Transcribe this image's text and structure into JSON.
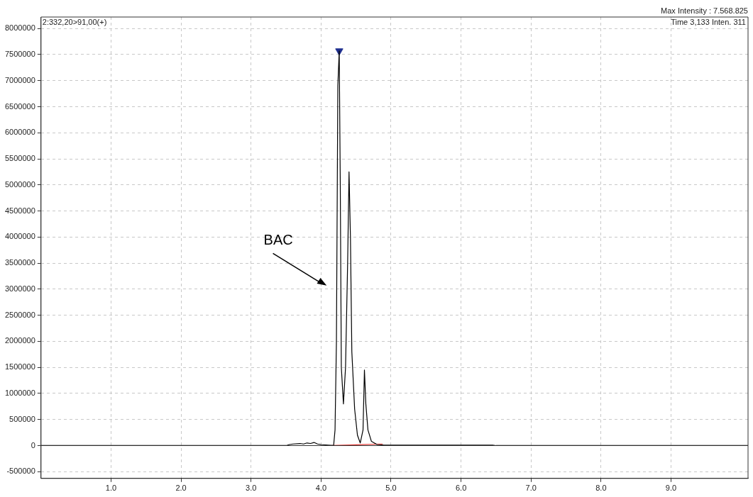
{
  "chart_data": {
    "type": "line",
    "annotations": [
      "2:332,20>91,00(+)",
      "Max Intensity : 7.568.825",
      "Time 3,133 Inten. 311",
      "BAC"
    ],
    "xlim": [
      0,
      10.1
    ],
    "xticks": [
      {
        "value": 1,
        "label": "1.0"
      },
      {
        "value": 2,
        "label": "2.0"
      },
      {
        "value": 3,
        "label": "3.0"
      },
      {
        "value": 4,
        "label": "4.0"
      },
      {
        "value": 5,
        "label": "5.0"
      },
      {
        "value": 6,
        "label": "6.0"
      },
      {
        "value": 7,
        "label": "7.0"
      },
      {
        "value": 8,
        "label": "8.0"
      },
      {
        "value": 9,
        "label": "9.0"
      }
    ],
    "ylim": [
      -630000,
      8220000
    ],
    "yticks": [
      -500000,
      0,
      500000,
      1000000,
      1500000,
      2000000,
      2500000,
      3000000,
      3500000,
      4000000,
      4500000,
      5000000,
      5500000,
      6000000,
      6500000,
      7000000,
      7500000,
      8000000
    ],
    "grid": true,
    "legend": false,
    "line_style": "solid",
    "series": [
      {
        "color": "#000000",
        "x": [
          0,
          3.5,
          3.55,
          3.6,
          3.7,
          3.75,
          3.8,
          3.85,
          3.9,
          3.95,
          4.0,
          4.1,
          4.18,
          4.2,
          4.22,
          4.24,
          4.26,
          4.275,
          4.29,
          4.32,
          4.35,
          4.38,
          4.4,
          4.42,
          4.44,
          4.48,
          4.52,
          4.56,
          4.6,
          4.62,
          4.64,
          4.67,
          4.72,
          4.8,
          4.9,
          5.5,
          6.45,
          6.5,
          10.1
        ],
        "values": [
          0,
          0,
          20000,
          30000,
          40000,
          30000,
          50000,
          40000,
          60000,
          30000,
          20000,
          10000,
          0,
          300000,
          2000000,
          6900000,
          7570000,
          5000000,
          1500000,
          800000,
          1500000,
          3500000,
          5250000,
          4000000,
          1800000,
          700000,
          200000,
          50000,
          300000,
          1450000,
          800000,
          300000,
          80000,
          20000,
          10000,
          10000,
          10000,
          0,
          0
        ]
      },
      {
        "type": "line",
        "color": "#e53935",
        "x": [
          4.15,
          4.88
        ],
        "values": [
          0,
          30000
        ]
      },
      {
        "type": "scatter",
        "color": "#1f2f8f",
        "marker": "triangle",
        "x": [
          4.26
        ],
        "values": [
          7570000
        ]
      }
    ]
  }
}
